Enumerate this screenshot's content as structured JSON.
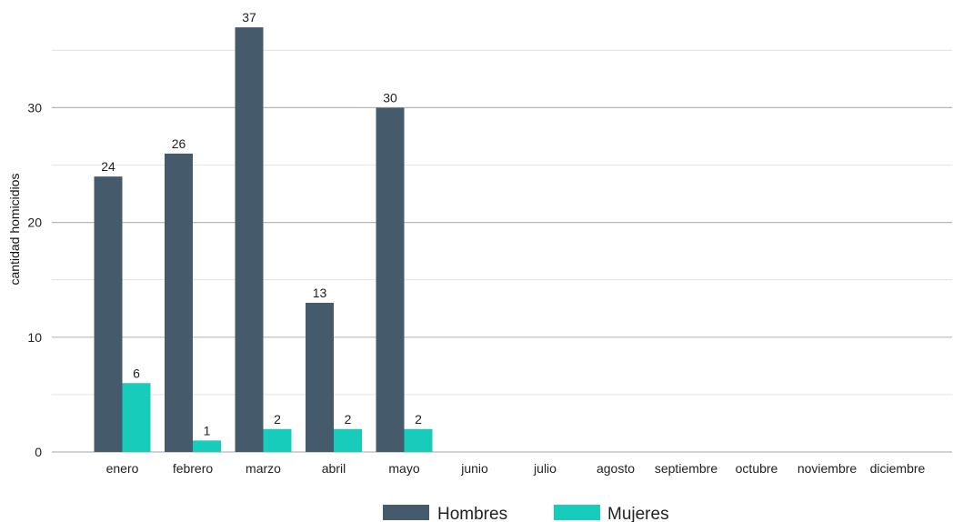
{
  "chart_data": {
    "type": "bar",
    "ylabel": "cantidad homicidios",
    "xlabel": "",
    "categories": [
      "enero",
      "febrero",
      "marzo",
      "abril",
      "mayo",
      "junio",
      "julio",
      "agosto",
      "septiembre",
      "octubre",
      "noviembre",
      "diciembre"
    ],
    "series": [
      {
        "name": "Hombres",
        "color": "#455A6B",
        "values": [
          24,
          26,
          37,
          13,
          30,
          null,
          null,
          null,
          null,
          null,
          null,
          null
        ]
      },
      {
        "name": "Mujeres",
        "color": "#17CCBA",
        "values": [
          6,
          1,
          2,
          2,
          2,
          null,
          null,
          null,
          null,
          null,
          null,
          null
        ]
      }
    ],
    "ylim": [
      0,
      38
    ],
    "yticks": [
      0,
      10,
      20,
      30
    ],
    "grid": true,
    "legend_position": "bottom"
  }
}
